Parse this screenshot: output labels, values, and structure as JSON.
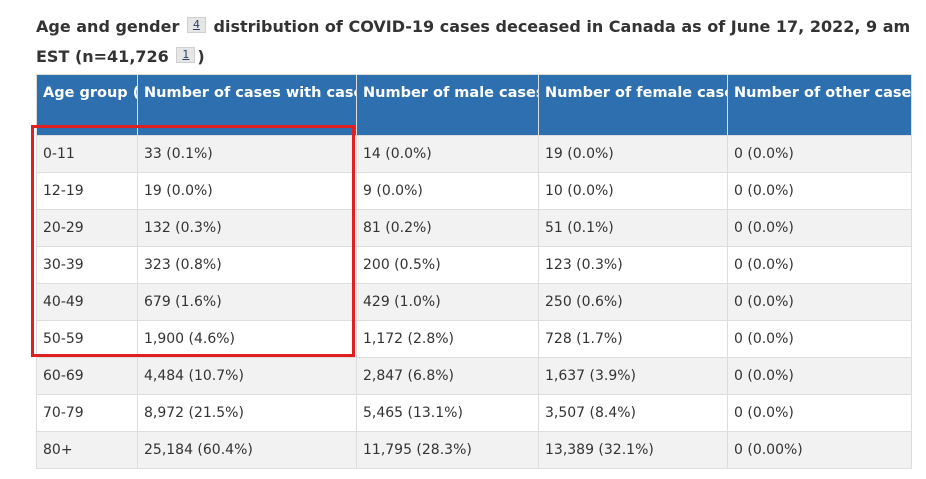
{
  "caption": {
    "text_a": "Age and gender",
    "fn_a": "4",
    "text_b": "distribution of COVID-19 cases deceased in Canada as of June 17, 2022, 9 am EST (n=41,726",
    "fn_b": "1",
    "text_c": ")"
  },
  "table": {
    "headers": [
      "Age group (years)",
      "Number of cases with case reports (percentage)",
      "Number of male cases (percentage)",
      "Number of female cases (percentage)",
      "Number of other cases (percentage)"
    ],
    "rows": [
      [
        "0-11",
        "33 (0.1%)",
        "14 (0.0%)",
        "19 (0.0%)",
        "0 (0.0%)"
      ],
      [
        "12-19",
        "19 (0.0%)",
        "9 (0.0%)",
        "10 (0.0%)",
        "0 (0.0%)"
      ],
      [
        "20-29",
        "132 (0.3%)",
        "81 (0.2%)",
        "51 (0.1%)",
        "0 (0.0%)"
      ],
      [
        "30-39",
        "323 (0.8%)",
        "200 (0.5%)",
        "123 (0.3%)",
        "0 (0.0%)"
      ],
      [
        "40-49",
        "679 (1.6%)",
        "429 (1.0%)",
        "250 (0.6%)",
        "0 (0.0%)"
      ],
      [
        "50-59",
        "1,900 (4.6%)",
        "1,172 (2.8%)",
        "728 (1.7%)",
        "0 (0.0%)"
      ],
      [
        "60-69",
        "4,484 (10.7%)",
        "2,847 (6.8%)",
        "1,637 (3.9%)",
        "0 (0.0%)"
      ],
      [
        "70-79",
        "8,972 (21.5%)",
        "5,465 (13.1%)",
        "3,507 (8.4%)",
        "0 (0.0%)"
      ],
      [
        "80+",
        "25,184 (60.4%)",
        "11,795 (28.3%)",
        "13,389 (32.1%)",
        "0 (0.00%)"
      ]
    ]
  },
  "colors": {
    "header_bg": "#2e6fb0",
    "highlight": "#e02020",
    "stripe": "#f2f2f2"
  }
}
